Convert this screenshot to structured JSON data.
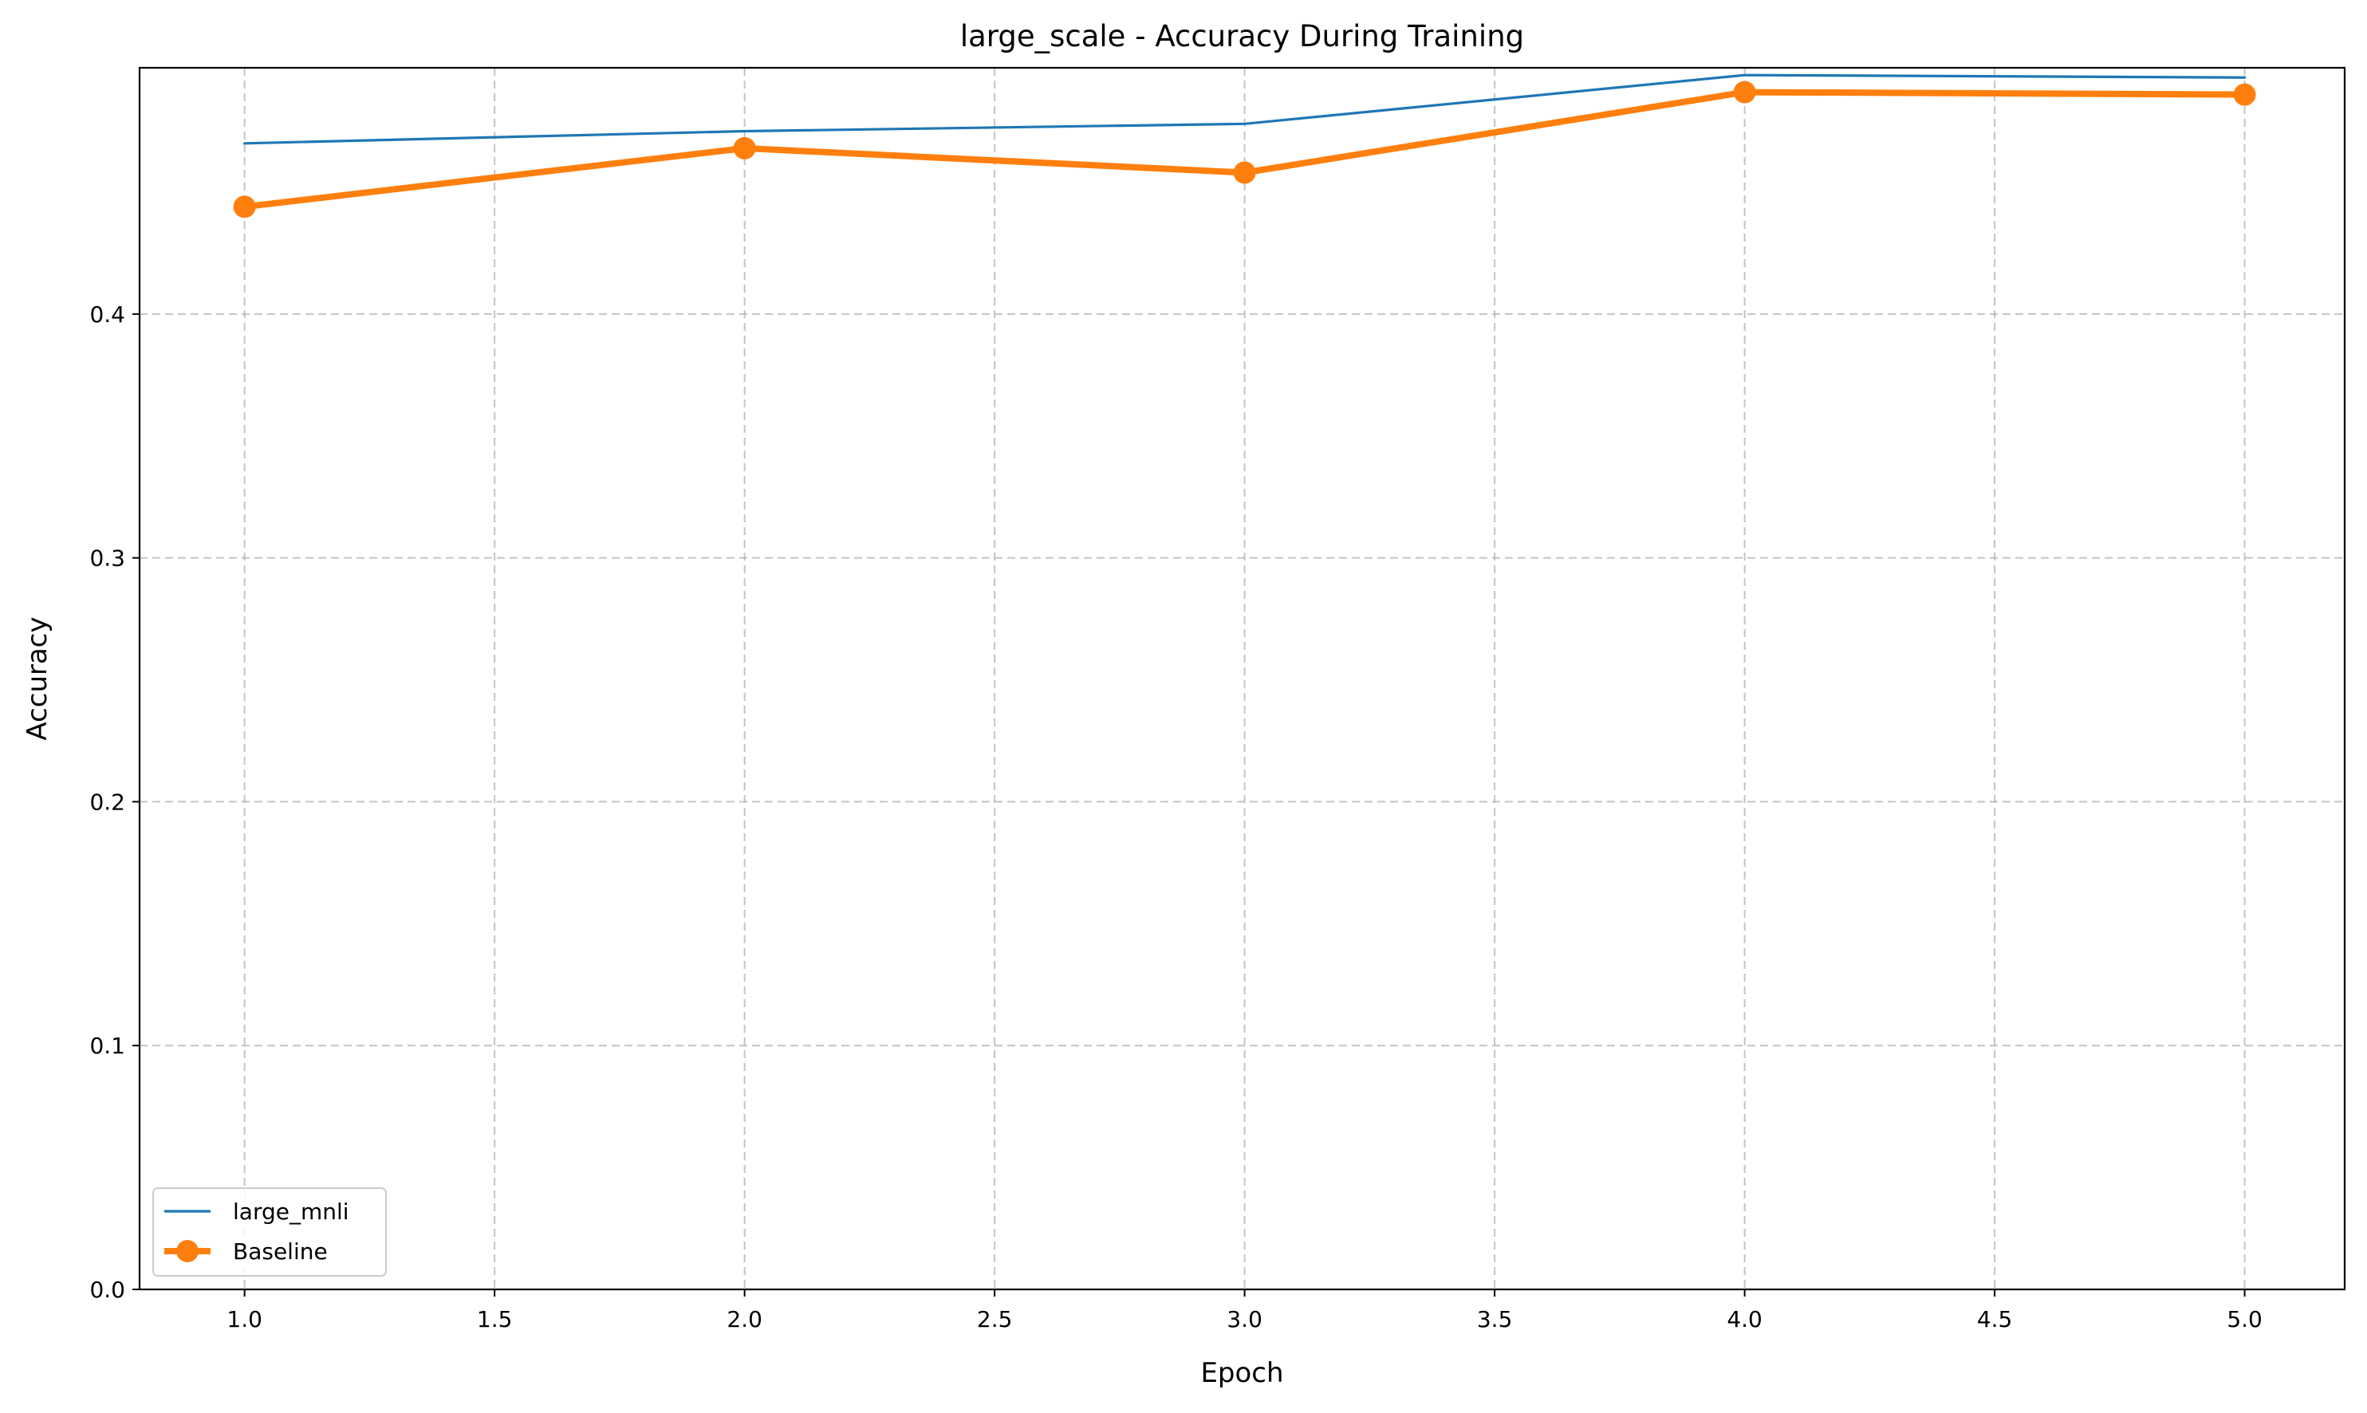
{
  "chart_data": {
    "type": "line",
    "title": "large_scale - Accuracy During Training",
    "xlabel": "Epoch",
    "ylabel": "Accuracy",
    "xlim": [
      0.79,
      5.2
    ],
    "ylim": [
      0,
      0.501
    ],
    "xticks": [
      1.0,
      1.5,
      2.0,
      2.5,
      3.0,
      3.5,
      4.0,
      4.5,
      5.0
    ],
    "yticks": [
      0.0,
      0.1,
      0.2,
      0.3,
      0.4
    ],
    "xtick_labels": [
      "1.0",
      "1.5",
      "2.0",
      "2.5",
      "3.0",
      "3.5",
      "4.0",
      "4.5",
      "5.0"
    ],
    "ytick_labels": [
      "0.0",
      "0.1",
      "0.2",
      "0.3",
      "0.4"
    ],
    "grid": true,
    "legend_position": "lower-left",
    "x": [
      1,
      2,
      3,
      4,
      5
    ],
    "series": [
      {
        "name": "large_mnli",
        "values": [
          0.47,
          0.475,
          0.478,
          0.498,
          0.497
        ],
        "color": "#1f77b4",
        "marker": "none"
      },
      {
        "name": "Baseline",
        "values": [
          0.444,
          0.468,
          0.458,
          0.491,
          0.49
        ],
        "color": "#ff7f0e",
        "marker": "circle"
      }
    ]
  }
}
